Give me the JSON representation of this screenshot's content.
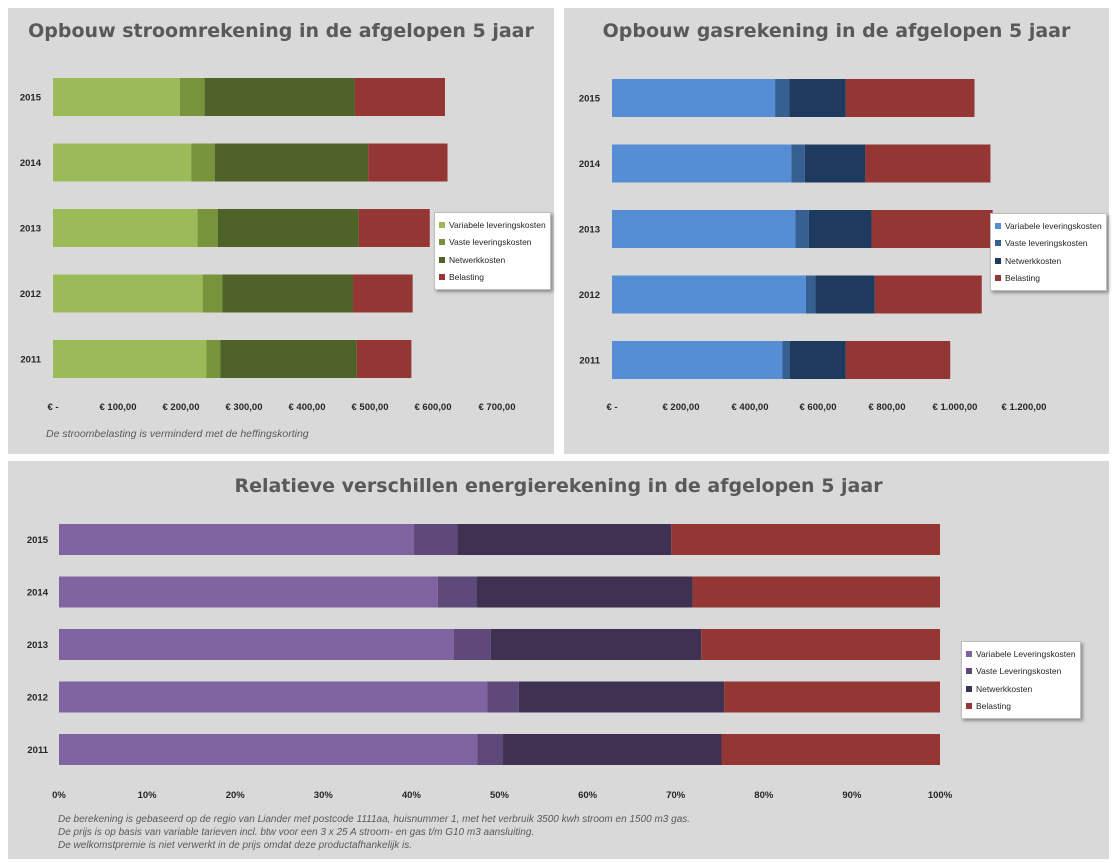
{
  "colors": {
    "electricity": [
      "#9bbb59",
      "#77933c",
      "#4f6228",
      "#943634"
    ],
    "gas": [
      "#558ed5",
      "#376092",
      "#1f3a5f",
      "#943634"
    ],
    "relative": [
      "#8064a2",
      "#5f497a",
      "#3f3151",
      "#943634"
    ]
  },
  "chart_data": [
    {
      "type": "bar",
      "orientation": "horizontal",
      "stacked": true,
      "title": "Opbouw stroomrekening in de afgelopen 5 jaar",
      "categories": [
        "2015",
        "2014",
        "2013",
        "2012",
        "2011"
      ],
      "series": [
        {
          "name": "Variabele leveringskosten",
          "values": [
            200,
            218,
            228,
            236,
            242
          ]
        },
        {
          "name": "Vaste leveringskosten",
          "values": [
            39,
            37,
            32,
            31,
            22
          ]
        },
        {
          "name": "Netwerkkosten",
          "values": [
            237,
            242,
            222,
            206,
            215
          ]
        },
        {
          "name": "Belasting",
          "values": [
            142,
            125,
            112,
            94,
            86
          ]
        }
      ],
      "xlim": [
        0,
        700
      ],
      "xticks": [
        "€ -",
        "€ 100,00",
        "€ 200,00",
        "€ 300,00",
        "€ 400,00",
        "€ 500,00",
        "€ 600,00",
        "€ 700,00"
      ],
      "legend": "right",
      "note": "De stroombelasting is verminderd met de heffingskorting"
    },
    {
      "type": "bar",
      "orientation": "horizontal",
      "stacked": true,
      "title": "Opbouw gasrekening in de afgelopen 5 jaar",
      "categories": [
        "2015",
        "2014",
        "2013",
        "2012",
        "2011"
      ],
      "series": [
        {
          "name": "Variabele leveringskosten",
          "values": [
            450,
            495,
            506,
            535,
            470
          ]
        },
        {
          "name": "Vaste leveringskosten",
          "values": [
            39,
            37,
            37,
            26,
            20
          ]
        },
        {
          "name": "Netwerkkosten",
          "values": [
            156,
            167,
            173,
            164,
            155
          ]
        },
        {
          "name": "Belasting",
          "values": [
            355,
            345,
            334,
            295,
            288
          ]
        }
      ],
      "xlim": [
        0,
        1200
      ],
      "xticks": [
        "€ -",
        "€ 200,00",
        "€ 400,00",
        "€ 600,00",
        "€ 800,00",
        "€ 1.000,00",
        "€ 1.200,00"
      ],
      "legend": "right"
    },
    {
      "type": "bar",
      "orientation": "horizontal",
      "stacked": true,
      "percent": true,
      "title": "Relatieve verschillen energierekening  in de afgelopen 5 jaar",
      "categories": [
        "2015",
        "2014",
        "2013",
        "2012",
        "2011"
      ],
      "series": [
        {
          "name": "Variabele Leveringskosten",
          "values": [
            40.3,
            43.0,
            44.8,
            48.6,
            47.5
          ]
        },
        {
          "name": "Vaste Leveringskosten",
          "values": [
            4.9,
            4.4,
            4.2,
            3.6,
            2.9
          ]
        },
        {
          "name": "Netwerkkosten",
          "values": [
            24.3,
            24.5,
            23.9,
            23.3,
            24.8
          ]
        },
        {
          "name": "Belasting",
          "values": [
            30.5,
            28.1,
            27.1,
            24.5,
            24.8
          ]
        }
      ],
      "xlim": [
        0,
        100
      ],
      "xticks": [
        "0%",
        "10%",
        "20%",
        "30%",
        "40%",
        "50%",
        "60%",
        "70%",
        "80%",
        "90%",
        "100%"
      ],
      "legend": "right",
      "notes": [
        "De berekening is gebaseerd op de regio van Liander met postcode 1111aa, huisnummer 1, met het verbruik 3500 kwh stroom en 1500 m3 gas.",
        "De prijs is op basis van variable tarieven incl. btw voor een 3 x 25 A stroom- en  gas t/m G10 m3 aansluiting.",
        "De welkomstpremie is niet verwerkt in de prijs omdat deze productafhankelijk is."
      ]
    }
  ]
}
